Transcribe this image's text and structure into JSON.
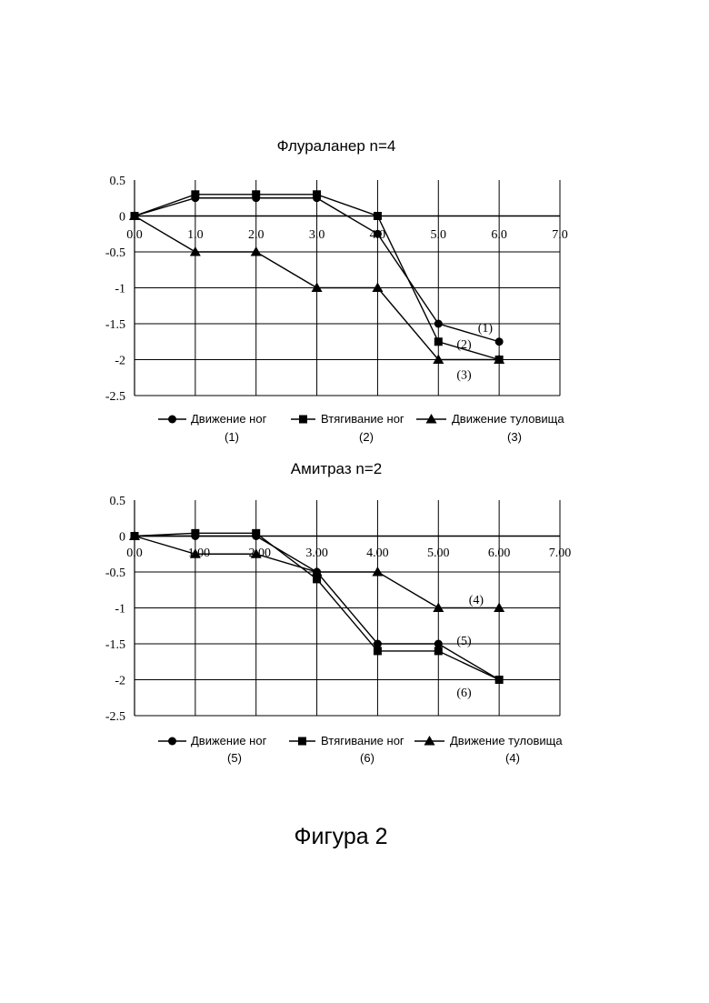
{
  "figure_caption": "Фигура 2",
  "chart_data": [
    {
      "type": "line",
      "title": "Флураланер n=4",
      "xlabel": "",
      "ylabel": "",
      "xlim": [
        0,
        7
      ],
      "ylim": [
        -2.5,
        0.5
      ],
      "x_tick_labels": [
        "0.0",
        "1.0",
        "2.0",
        "3.0",
        "4.0",
        "5.0",
        "6.0",
        "7.0"
      ],
      "y_tick_labels": [
        "0.5",
        "0",
        "-0.5",
        "-1",
        "-1.5",
        "-2",
        "-2.5"
      ],
      "grid": true,
      "series": [
        {
          "name": "Движение ног",
          "tag": "(1)",
          "marker": "circle",
          "x": [
            0,
            1,
            2,
            3,
            4,
            5,
            6
          ],
          "y": [
            0,
            0.25,
            0.25,
            0.25,
            -0.25,
            -1.5,
            -1.75
          ]
        },
        {
          "name": "Втягивание ног",
          "tag": "(2)",
          "marker": "square",
          "x": [
            0,
            1,
            2,
            3,
            4,
            5,
            6
          ],
          "y": [
            0,
            0.3,
            0.3,
            0.3,
            0,
            -1.75,
            -2
          ]
        },
        {
          "name": "Движение туловища",
          "tag": "(3)",
          "marker": "triangle",
          "x": [
            0,
            1,
            2,
            3,
            4,
            5,
            6
          ],
          "y": [
            0,
            -0.5,
            -0.5,
            -1,
            -1,
            -2,
            -2
          ]
        }
      ],
      "annotations": [
        {
          "text": "(1)",
          "x": 5.65,
          "y": -1.55
        },
        {
          "text": "(2)",
          "x": 5.3,
          "y": -1.78
        },
        {
          "text": "(3)",
          "x": 5.3,
          "y": -2.2
        }
      ]
    },
    {
      "type": "line",
      "title": "Амитраз n=2",
      "xlabel": "",
      "ylabel": "",
      "xlim": [
        0,
        7
      ],
      "ylim": [
        -2.5,
        0.5
      ],
      "x_tick_labels": [
        "0.0",
        "1.00",
        "2.00",
        "3.00",
        "4.00",
        "5.00",
        "6.00",
        "7.00"
      ],
      "y_tick_labels": [
        "0.5",
        "0",
        "-0.5",
        "-1",
        "-1.5",
        "-2",
        "-2.5"
      ],
      "grid": true,
      "series": [
        {
          "name": "Движение ног",
          "tag": "(5)",
          "marker": "circle",
          "x": [
            0,
            1,
            2,
            3,
            4,
            5,
            6
          ],
          "y": [
            0,
            0,
            0,
            -0.5,
            -1.5,
            -1.5,
            -2
          ]
        },
        {
          "name": "Втягивание ног",
          "tag": "(6)",
          "marker": "square",
          "x": [
            0,
            1,
            2,
            3,
            4,
            5,
            6
          ],
          "y": [
            0,
            0.04,
            0.04,
            -0.6,
            -1.6,
            -1.6,
            -2
          ]
        },
        {
          "name": "Движение туловища",
          "tag": "(4)",
          "marker": "triangle",
          "x": [
            0,
            1,
            2,
            3,
            4,
            5,
            6
          ],
          "y": [
            0,
            -0.25,
            -0.25,
            -0.5,
            -0.5,
            -1,
            -1
          ]
        }
      ],
      "annotations": [
        {
          "text": "(4)",
          "x": 5.5,
          "y": -0.88
        },
        {
          "text": "(5)",
          "x": 5.3,
          "y": -1.45
        },
        {
          "text": "(6)",
          "x": 5.3,
          "y": -2.17
        }
      ]
    }
  ]
}
